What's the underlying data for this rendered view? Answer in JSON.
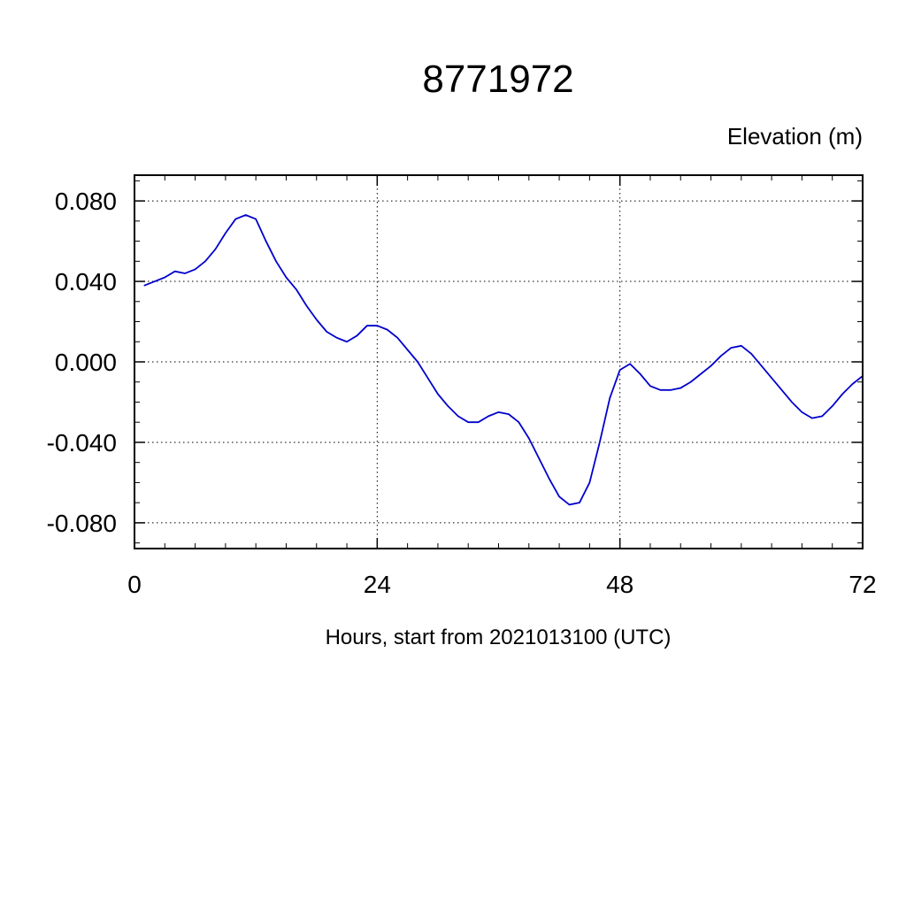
{
  "chart_data": {
    "type": "line",
    "title": "8771972",
    "ylabel": "Elevation (m)",
    "xlabel": "Hours, start from 2021013100 (UTC)",
    "line_color": "#0000cd",
    "grid": true,
    "legend": "none",
    "xlim": [
      0,
      72
    ],
    "ylim": [
      -0.0928,
      0.0928
    ],
    "x_major_ticks": [
      {
        "v": 0,
        "label": "0"
      },
      {
        "v": 24,
        "label": "24"
      },
      {
        "v": 48,
        "label": "48"
      },
      {
        "v": 72,
        "label": "72"
      }
    ],
    "x_minor_step": 3,
    "y_major_ticks": [
      {
        "v": 0.08,
        "label": "0.080"
      },
      {
        "v": 0.04,
        "label": "0.040"
      },
      {
        "v": 0.0,
        "label": "0.000"
      },
      {
        "v": -0.04,
        "label": "-0.040"
      },
      {
        "v": -0.08,
        "label": "-0.080"
      }
    ],
    "y_minor_step": 0.01,
    "x": [
      1,
      2,
      3,
      4,
      5,
      6,
      7,
      8,
      9,
      10,
      11,
      12,
      13,
      14,
      15,
      16,
      17,
      18,
      19,
      20,
      21,
      22,
      23,
      24,
      25,
      26,
      27,
      28,
      29,
      30,
      31,
      32,
      33,
      34,
      35,
      36,
      37,
      38,
      39,
      40,
      41,
      42,
      43,
      44,
      45,
      46,
      47,
      48,
      49,
      50,
      51,
      52,
      53,
      54,
      55,
      56,
      57,
      58,
      59,
      60,
      61,
      62,
      63,
      64,
      65,
      66,
      67,
      68,
      69,
      70,
      71,
      72
    ],
    "values": [
      0.038,
      0.04,
      0.042,
      0.045,
      0.044,
      0.046,
      0.05,
      0.056,
      0.064,
      0.071,
      0.073,
      0.071,
      0.06,
      0.05,
      0.042,
      0.036,
      0.028,
      0.021,
      0.015,
      0.012,
      0.01,
      0.013,
      0.018,
      0.018,
      0.016,
      0.012,
      0.006,
      0.0,
      -0.008,
      -0.016,
      -0.022,
      -0.027,
      -0.03,
      -0.03,
      -0.027,
      -0.025,
      -0.026,
      -0.03,
      -0.038,
      -0.048,
      -0.058,
      -0.067,
      -0.071,
      -0.07,
      -0.06,
      -0.04,
      -0.018,
      -0.004,
      -0.001,
      -0.006,
      -0.012,
      -0.014,
      -0.014,
      -0.013,
      -0.01,
      -0.006,
      -0.002,
      0.003,
      0.007,
      0.008,
      0.004,
      -0.002,
      -0.008,
      -0.014,
      -0.02,
      -0.025,
      -0.028,
      -0.027,
      -0.022,
      -0.016,
      -0.011,
      -0.007
    ]
  }
}
